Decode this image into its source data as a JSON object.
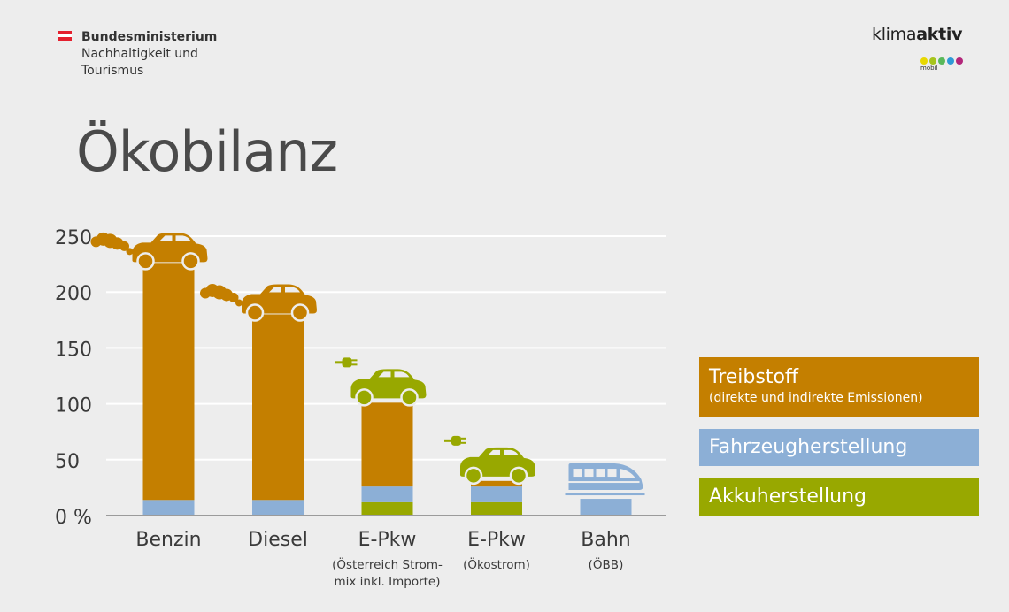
{
  "header": {
    "ministry_line1": "Bundesministerium",
    "ministry_line2": "Nachhaltigkeit und",
    "ministry_line3": "Tourismus",
    "brand_prefix": "klima",
    "brand_bold": "aktiv",
    "brand_sub": "mobil",
    "brand_dot_colors": [
      "#e8d800",
      "#a6c41c",
      "#59b85a",
      "#2f9ad6",
      "#b2267a"
    ]
  },
  "colors": {
    "fuel": "#c47f00",
    "vehicle": "#8cafd6",
    "battery": "#98a800",
    "ev_icon": "#98a800",
    "train_icon": "#8cafd6"
  },
  "chart_data": {
    "type": "bar",
    "stacked": true,
    "title": "Ökobilanz",
    "categories": [
      "Benzin",
      "Diesel",
      "E-Pkw",
      "E-Pkw",
      "Bahn"
    ],
    "category_notes": [
      "",
      "",
      "(Österreich Strom-\nmix inkl. Importe)",
      "(Ökostrom)",
      "(ÖBB)"
    ],
    "series": [
      {
        "name": "Akkuherstellung",
        "values": [
          0,
          0,
          12,
          12,
          0
        ]
      },
      {
        "name": "Fahrzeugherstellung",
        "values": [
          14,
          14,
          14,
          14,
          15
        ]
      },
      {
        "name": "Treibstoff",
        "values": [
          212,
          166,
          75,
          5,
          0
        ]
      }
    ],
    "legend": [
      {
        "title": "Treibstoff",
        "subtitle": "(direkte und indirekte Emissionen)"
      },
      {
        "title": "Fahrzeugherstellung",
        "subtitle": ""
      },
      {
        "title": "Akkuherstellung",
        "subtitle": ""
      }
    ],
    "yticks": [
      0,
      50,
      100,
      150,
      200,
      250
    ],
    "ytick_labels": [
      "0 %",
      "50",
      "100",
      "150",
      "200",
      "250"
    ],
    "ylim": [
      0,
      250
    ],
    "grid": true,
    "legend_position": "right",
    "icons": [
      "petrol-car-icon",
      "diesel-car-icon",
      "electric-car-icon",
      "electric-car-icon",
      "train-icon"
    ]
  }
}
